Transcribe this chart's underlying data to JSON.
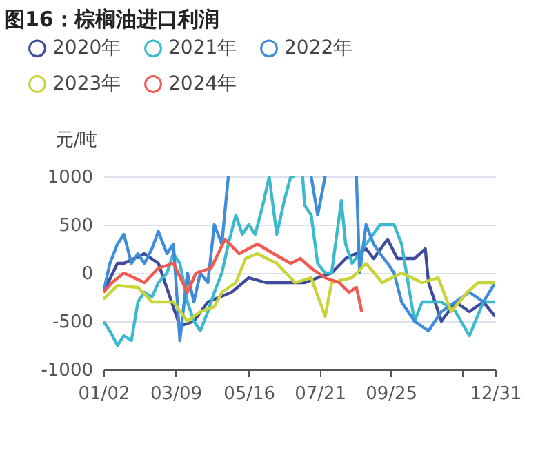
{
  "chart_data": {
    "type": "line",
    "title": "图16：棕榈油进口利润",
    "ylabel": "元/吨",
    "xlim": [
      "--01-02",
      "--12-31"
    ],
    "xticks": [
      {
        "value": "--01-02",
        "label": "01/02"
      },
      {
        "value": "--03-09",
        "label": "03/09"
      },
      {
        "value": "--05-16",
        "label": "05/16"
      },
      {
        "value": "--07-21",
        "label": "07/21"
      },
      {
        "value": "--09-25",
        "label": "09/25"
      },
      {
        "value": "--11-30",
        "label": null
      },
      {
        "value": "--12-31",
        "label": "12/31"
      }
    ],
    "ylim": [
      -1000,
      1000
    ],
    "yticks": [
      -1000,
      -500,
      0,
      500,
      1000
    ],
    "grid": "y",
    "legend": "top",
    "marker": "none",
    "line_style": "solid",
    "series": [
      {
        "name": "2020年",
        "color": "#3f4b9b",
        "x": [
          "--01-02",
          "--01-15",
          "--01-21",
          "--02-09",
          "--02-22",
          "--03-13",
          "--03-26",
          "--04-08",
          "--04-30",
          "--05-16",
          "--06-01",
          "--06-18",
          "--07-07",
          "--07-19",
          "--08-01",
          "--08-14",
          "--09-02",
          "--09-09",
          "--09-22",
          "--10-01",
          "--10-17",
          "--10-27",
          "--10-30",
          "--11-11",
          "--11-24",
          "--12-07",
          "--12-20",
          "--12-31"
        ],
        "values": [
          -200,
          100,
          100,
          200,
          100,
          -550,
          -500,
          -300,
          -200,
          -50,
          -100,
          -100,
          -100,
          -50,
          0,
          150,
          250,
          150,
          350,
          150,
          150,
          250,
          -100,
          -500,
          -300,
          -400,
          -300,
          -450
        ]
      },
      {
        "name": "2021年",
        "color": "#3cb9cc",
        "x": [
          "--01-02",
          "--01-08",
          "--01-15",
          "--01-21",
          "--01-28",
          "--02-03",
          "--02-09",
          "--02-16",
          "--02-22",
          "--03-01",
          "--03-07",
          "--03-13",
          "--03-20",
          "--03-26",
          "--04-01",
          "--04-08",
          "--04-14",
          "--04-21",
          "--04-27",
          "--05-04",
          "--05-10",
          "--05-16",
          "--05-22",
          "--05-29",
          "--06-04",
          "--06-11",
          "--06-18",
          "--06-24",
          "--06-28",
          "--07-01",
          "--07-05",
          "--07-07",
          "--07-13",
          "--07-19",
          "--07-26",
          "--08-01",
          "--08-10",
          "--08-14",
          "--08-20",
          "--09-02",
          "--09-15",
          "--09-28",
          "--10-05",
          "--10-17",
          "--10-24",
          "--11-11",
          "--11-24",
          "--12-07",
          "--12-20",
          "--12-31"
        ],
        "values": [
          -500,
          -600,
          -750,
          -650,
          -700,
          -300,
          -200,
          -250,
          -100,
          0,
          200,
          100,
          -300,
          -500,
          -600,
          -400,
          -200,
          0,
          300,
          600,
          400,
          500,
          400,
          700,
          1000,
          400,
          750,
          1000,
          1000,
          null,
          1000,
          700,
          600,
          100,
          0,
          0,
          750,
          300,
          100,
          300,
          500,
          500,
          300,
          -500,
          -300,
          -300,
          -400,
          -650,
          -300,
          -300
        ]
      },
      {
        "name": "2022年",
        "color": "#3f8cd9",
        "x": [
          "--01-02",
          "--01-08",
          "--01-15",
          "--01-21",
          "--01-28",
          "--02-03",
          "--02-09",
          "--02-16",
          "--02-22",
          "--03-01",
          "--03-07",
          "--03-13",
          "--03-20",
          "--03-26",
          "--04-01",
          "--04-08",
          "--04-14",
          "--04-21",
          "--04-27",
          "--05-04",
          "--07-07",
          "--07-13",
          "--07-19",
          "--07-26",
          "--08-01",
          "--08-20",
          "--08-24",
          "--08-27",
          "--09-02",
          "--09-09",
          "--09-15",
          "--09-22",
          "--09-28",
          "--10-05",
          "--10-17",
          "--10-30",
          "--11-11",
          "--11-24",
          "--12-07",
          "--12-20",
          "--12-31"
        ],
        "values": [
          -200,
          100,
          300,
          400,
          100,
          200,
          100,
          250,
          430,
          200,
          300,
          -700,
          0,
          -300,
          0,
          -100,
          500,
          300,
          1000,
          null,
          null,
          1000,
          600,
          1000,
          null,
          null,
          1000,
          0,
          500,
          300,
          200,
          100,
          0,
          -300,
          -500,
          -600,
          -400,
          -300,
          -200,
          -300,
          -100
        ]
      },
      {
        "name": "2023年",
        "color": "#c9d43b",
        "x": [
          "--01-02",
          "--01-15",
          "--02-03",
          "--02-16",
          "--03-07",
          "--03-20",
          "--04-01",
          "--04-14",
          "--04-21",
          "--05-04",
          "--05-13",
          "--05-24",
          "--06-11",
          "--06-28",
          "--07-13",
          "--07-26",
          "--08-01",
          "--08-20",
          "--09-02",
          "--09-17",
          "--10-05",
          "--10-24",
          "--11-08",
          "--11-20",
          "--12-05",
          "--12-15",
          "--12-31"
        ],
        "values": [
          -270,
          -130,
          -150,
          -300,
          -300,
          -500,
          -400,
          -350,
          -200,
          -100,
          150,
          200,
          100,
          -100,
          -50,
          -450,
          -100,
          -50,
          100,
          -100,
          0,
          -100,
          -50,
          -400,
          -200,
          -100,
          -100
        ]
      },
      {
        "name": "2024年",
        "color": "#f15a50",
        "x": [
          "--01-02",
          "--01-10",
          "--01-21",
          "--02-09",
          "--02-22",
          "--03-07",
          "--03-20",
          "--03-28",
          "--04-11",
          "--04-24",
          "--05-07",
          "--05-24",
          "--06-08",
          "--06-24",
          "--07-03",
          "--07-13",
          "--07-26",
          "--08-08",
          "--08-17",
          "--08-24",
          "--08-29"
        ],
        "values": [
          -200,
          -100,
          0,
          -100,
          50,
          100,
          -200,
          0,
          50,
          350,
          200,
          300,
          200,
          100,
          150,
          50,
          -50,
          -100,
          -200,
          -150,
          -400
        ]
      }
    ]
  }
}
